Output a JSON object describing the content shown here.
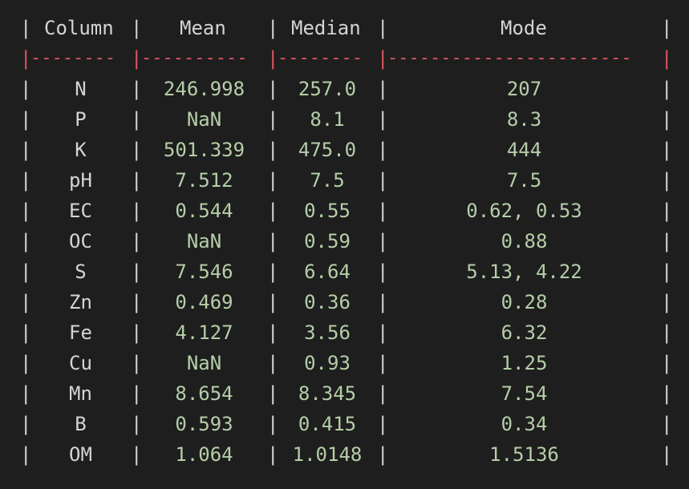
{
  "table": {
    "headers": {
      "column": "Column",
      "mean": "Mean",
      "median": "Median",
      "mode": "Mode"
    },
    "separator": {
      "col1": "--------",
      "col2": "----------",
      "col3": "--------",
      "col4": "-----------------------"
    },
    "rows": [
      {
        "column": "N",
        "mean": "246.998",
        "median": "257.0",
        "mode": "207"
      },
      {
        "column": "P",
        "mean": "NaN",
        "median": "8.1",
        "mode": "8.3"
      },
      {
        "column": "K",
        "mean": "501.339",
        "median": "475.0",
        "mode": "444"
      },
      {
        "column": "pH",
        "mean": "7.512",
        "median": "7.5",
        "mode": "7.5"
      },
      {
        "column": "EC",
        "mean": "0.544",
        "median": "0.55",
        "mode": "0.62, 0.53"
      },
      {
        "column": "OC",
        "mean": "NaN",
        "median": "0.59",
        "mode": "0.88"
      },
      {
        "column": "S",
        "mean": "7.546",
        "median": "6.64",
        "mode": "5.13, 4.22"
      },
      {
        "column": "Zn",
        "mean": "0.469",
        "median": "0.36",
        "mode": "0.28"
      },
      {
        "column": "Fe",
        "mean": "4.127",
        "median": "3.56",
        "mode": "6.32"
      },
      {
        "column": "Cu",
        "mean": "NaN",
        "median": "0.93",
        "mode": "1.25"
      },
      {
        "column": "Mn",
        "mean": "8.654",
        "median": "8.345",
        "mode": "7.54"
      },
      {
        "column": "B",
        "mean": "0.593",
        "median": "0.415",
        "mode": "0.34"
      },
      {
        "column": "OM",
        "mean": "1.064",
        "median": "1.0148",
        "mode": "1.5136"
      }
    ]
  },
  "colors": {
    "background": "#1e1e1e",
    "text": "#d4d4d4",
    "number": "#b5cea8",
    "separator": "#e0555e"
  }
}
